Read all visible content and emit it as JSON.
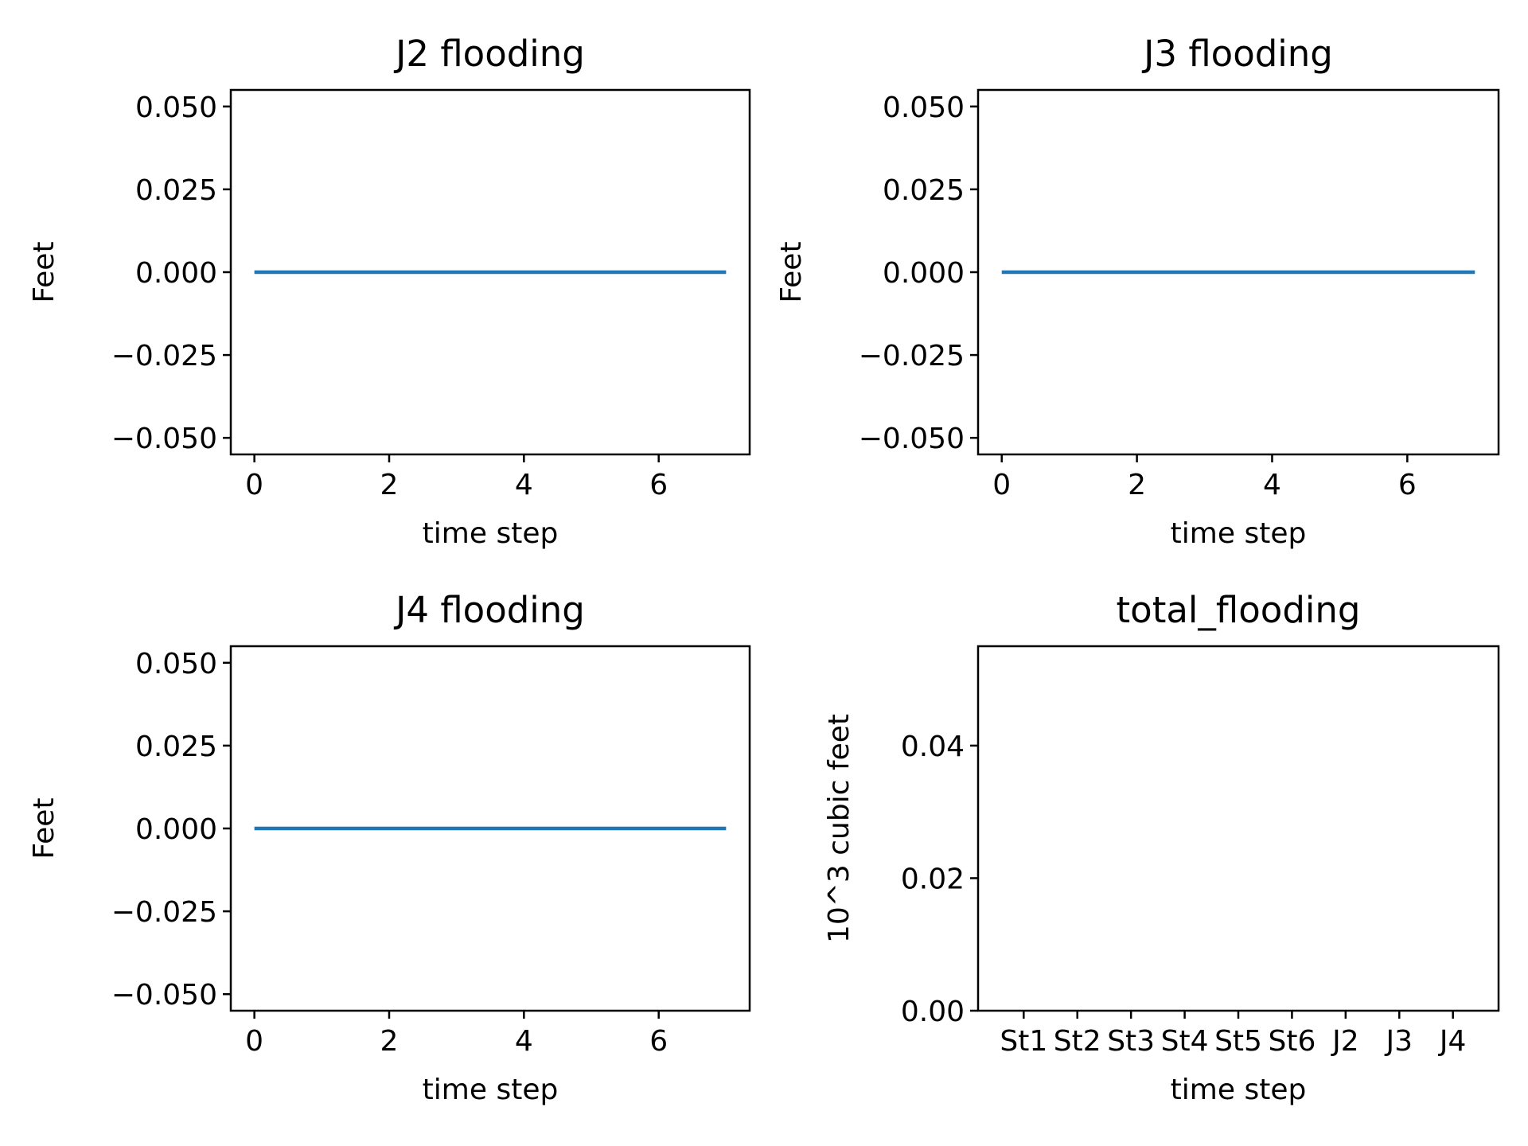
{
  "chart_data": [
    {
      "type": "line",
      "title": "J2 flooding",
      "xlabel": "time step",
      "ylabel": "Feet",
      "xlim": [
        -0.35,
        7.35
      ],
      "ylim": [
        -0.055,
        0.055
      ],
      "xticks": [
        0,
        2,
        4,
        6
      ],
      "xtick_labels": [
        "0",
        "2",
        "4",
        "6"
      ],
      "yticks": [
        -0.05,
        -0.025,
        0,
        0.025,
        0.05
      ],
      "ytick_labels": [
        "−0.050",
        "−0.025",
        "0.000",
        "0.025",
        "0.050"
      ],
      "series": [
        {
          "x": [
            0,
            1,
            2,
            3,
            4,
            5,
            6,
            7
          ],
          "values": [
            0,
            0,
            0,
            0,
            0,
            0,
            0,
            0
          ],
          "color": "#1f77b4"
        }
      ],
      "grid": false
    },
    {
      "type": "line",
      "title": "J3 flooding",
      "xlabel": "time step",
      "ylabel": "Feet",
      "xlim": [
        -0.35,
        7.35
      ],
      "ylim": [
        -0.055,
        0.055
      ],
      "xticks": [
        0,
        2,
        4,
        6
      ],
      "xtick_labels": [
        "0",
        "2",
        "4",
        "6"
      ],
      "yticks": [
        -0.05,
        -0.025,
        0,
        0.025,
        0.05
      ],
      "ytick_labels": [
        "−0.050",
        "−0.025",
        "0.000",
        "0.025",
        "0.050"
      ],
      "series": [
        {
          "x": [
            0,
            1,
            2,
            3,
            4,
            5,
            6,
            7
          ],
          "values": [
            0,
            0,
            0,
            0,
            0,
            0,
            0,
            0
          ],
          "color": "#1f77b4"
        }
      ],
      "grid": false
    },
    {
      "type": "line",
      "title": "J4 flooding",
      "xlabel": "time step",
      "ylabel": "Feet",
      "xlim": [
        -0.35,
        7.35
      ],
      "ylim": [
        -0.055,
        0.055
      ],
      "xticks": [
        0,
        2,
        4,
        6
      ],
      "xtick_labels": [
        "0",
        "2",
        "4",
        "6"
      ],
      "yticks": [
        -0.05,
        -0.025,
        0,
        0.025,
        0.05
      ],
      "ytick_labels": [
        "−0.050",
        "−0.025",
        "0.000",
        "0.025",
        "0.050"
      ],
      "series": [
        {
          "x": [
            0,
            1,
            2,
            3,
            4,
            5,
            6,
            7
          ],
          "values": [
            0,
            0,
            0,
            0,
            0,
            0,
            0,
            0
          ],
          "color": "#1f77b4"
        }
      ],
      "grid": false
    },
    {
      "type": "bar",
      "title": "total_flooding",
      "xlabel": "time step",
      "ylabel": "10^3 cubic feet",
      "categories": [
        "St1",
        "St2",
        "St3",
        "St4",
        "St5",
        "St6",
        "J2",
        "J3",
        "J4"
      ],
      "values": [
        0,
        0,
        0,
        0,
        0,
        0,
        0,
        0,
        0
      ],
      "xlim": [
        -0.85,
        8.85
      ],
      "ylim": [
        0,
        0.055
      ],
      "yticks": [
        0,
        0.02,
        0.04
      ],
      "ytick_labels": [
        "0.00",
        "0.02",
        "0.04"
      ],
      "color": "#1f77b4",
      "grid": false
    }
  ]
}
